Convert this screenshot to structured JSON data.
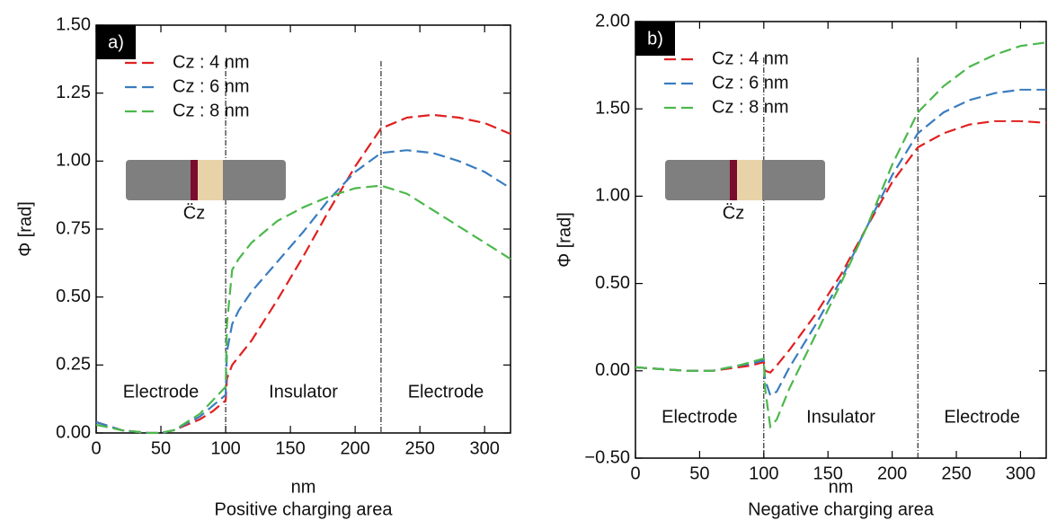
{
  "chart_data": [
    {
      "type": "line",
      "panel_label": "a)",
      "ylabel": "Φ [rad]",
      "xlabel": "nm",
      "subtitle": "Positive charging area",
      "region_labels": [
        "Electrode",
        "Insulator",
        "Electrode"
      ],
      "vlines": [
        100,
        220
      ],
      "inset_label": "C̈z",
      "x": [
        0,
        20,
        40,
        50,
        60,
        80,
        90,
        100,
        101,
        105,
        110,
        120,
        140,
        160,
        180,
        200,
        220,
        240,
        260,
        280,
        300,
        320
      ],
      "xlim": [
        0,
        320
      ],
      "xticks": [
        0,
        50,
        100,
        150,
        200,
        250,
        300
      ],
      "ylim": [
        0,
        1.5
      ],
      "yticks": [
        {
          "value": 0,
          "label": "0.00"
        },
        0.25,
        {
          "value": 0.5,
          "label": "0.50"
        },
        0.75,
        {
          "value": 1,
          "label": "1.00"
        },
        1.25,
        {
          "value": 1.5,
          "label": "1.50"
        }
      ],
      "series": [
        {
          "name": "Cz : 4 nm",
          "color": "#e02020",
          "values": [
            0.04,
            0.01,
            0.0,
            0.0,
            0.01,
            0.05,
            0.08,
            0.12,
            0.2,
            0.25,
            0.28,
            0.34,
            0.49,
            0.65,
            0.82,
            0.98,
            1.12,
            1.16,
            1.17,
            1.16,
            1.14,
            1.1
          ]
        },
        {
          "name": "Cz : 6 nm",
          "color": "#3a7dbf",
          "values": [
            0.04,
            0.01,
            0.0,
            0.0,
            0.01,
            0.06,
            0.1,
            0.14,
            0.3,
            0.4,
            0.45,
            0.52,
            0.63,
            0.74,
            0.86,
            0.96,
            1.03,
            1.04,
            1.03,
            1.0,
            0.96,
            0.9
          ]
        },
        {
          "name": "Cz : 8 nm",
          "color": "#4cb84c",
          "values": [
            0.03,
            0.01,
            0.0,
            0.0,
            0.01,
            0.07,
            0.12,
            0.17,
            0.4,
            0.6,
            0.64,
            0.7,
            0.78,
            0.83,
            0.87,
            0.9,
            0.91,
            0.88,
            0.82,
            0.76,
            0.7,
            0.64
          ]
        }
      ]
    },
    {
      "type": "line",
      "panel_label": "b)",
      "ylabel": "Φ [rad]",
      "xlabel": "nm",
      "subtitle": "Negative charging area",
      "region_labels": [
        "Electrode",
        "Insulator",
        "Electrode"
      ],
      "vlines": [
        100,
        220
      ],
      "inset_label": "C̈z",
      "x": [
        0,
        20,
        40,
        50,
        60,
        80,
        90,
        100,
        101,
        105,
        110,
        120,
        140,
        160,
        180,
        200,
        220,
        240,
        260,
        280,
        300,
        320
      ],
      "xlim": [
        0,
        320
      ],
      "xticks": [
        0,
        50,
        100,
        150,
        200,
        250,
        300
      ],
      "ylim": [
        -0.5,
        2
      ],
      "yticks": [
        {
          "value": -0.5,
          "label": "−0.50"
        },
        {
          "value": 0,
          "label": "0.00"
        },
        {
          "value": 0.5,
          "label": "0.50"
        },
        {
          "value": 1,
          "label": "1.00"
        },
        {
          "value": 1.5,
          "label": "1.50"
        },
        {
          "value": 2,
          "label": "2.00"
        }
      ],
      "series": [
        {
          "name": "Cz : 4 nm",
          "color": "#e02020",
          "values": [
            0.02,
            0.01,
            0.0,
            0.0,
            0.0,
            0.02,
            0.03,
            0.05,
            0.0,
            -0.01,
            0.03,
            0.12,
            0.32,
            0.55,
            0.82,
            1.08,
            1.28,
            1.36,
            1.41,
            1.43,
            1.43,
            1.42
          ]
        },
        {
          "name": "Cz : 6 nm",
          "color": "#3a7dbf",
          "values": [
            0.02,
            0.01,
            0.0,
            0.0,
            0.0,
            0.03,
            0.04,
            0.06,
            -0.05,
            -0.14,
            -0.12,
            0.02,
            0.26,
            0.52,
            0.82,
            1.12,
            1.36,
            1.48,
            1.55,
            1.59,
            1.61,
            1.61
          ]
        },
        {
          "name": "Cz : 8 nm",
          "color": "#4cb84c",
          "values": [
            0.02,
            0.01,
            0.0,
            0.0,
            0.0,
            0.03,
            0.05,
            0.07,
            -0.1,
            -0.32,
            -0.28,
            -0.1,
            0.2,
            0.5,
            0.82,
            1.18,
            1.48,
            1.63,
            1.74,
            1.81,
            1.86,
            1.88
          ]
        }
      ]
    }
  ]
}
